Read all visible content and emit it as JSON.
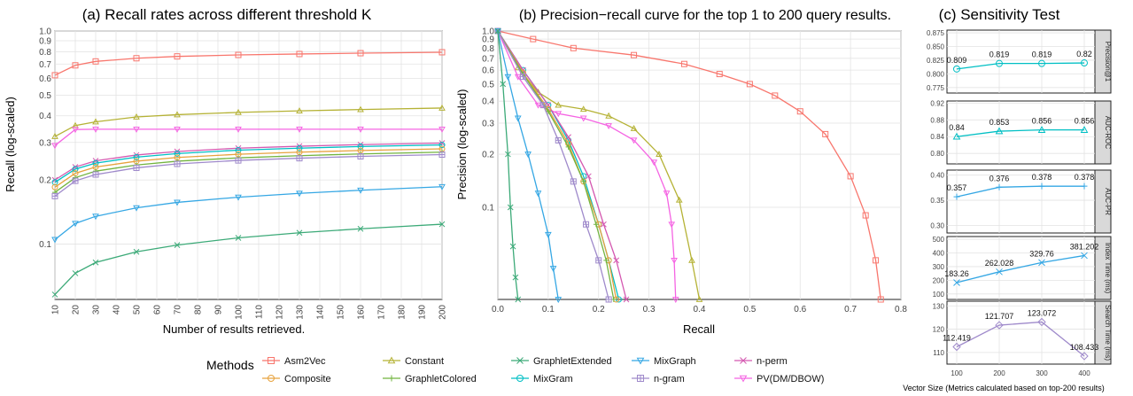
{
  "chart_data": [
    {
      "type": "line",
      "title": "(a) Recall rates across different threshold K",
      "xlabel": "Number of results retrieved.",
      "ylabel": "Recall (log-scaled)",
      "xlim": [
        10,
        200
      ],
      "ylim": [
        0.055,
        1.0
      ],
      "y_scale": "log",
      "grid": true,
      "x_ticks": [
        "10",
        "20",
        "30",
        "40",
        "50",
        "60",
        "70",
        "80",
        "90",
        "100",
        "110",
        "120",
        "130",
        "140",
        "150",
        "160",
        "170",
        "180",
        "190",
        "200"
      ],
      "y_ticks": [
        "0.1",
        "0.2",
        "0.3",
        "0.4",
        "0.5",
        "0.6",
        "0.7",
        "0.8",
        "0.9",
        "1.0"
      ],
      "x": [
        10,
        20,
        30,
        50,
        70,
        100,
        130,
        160,
        200
      ],
      "series": [
        {
          "name": "Asm2Vec",
          "color": "#f8766d",
          "values": [
            0.62,
            0.69,
            0.72,
            0.745,
            0.76,
            0.772,
            0.78,
            0.787,
            0.795
          ]
        },
        {
          "name": "Constant",
          "color": "#b5b235",
          "values": [
            0.32,
            0.36,
            0.375,
            0.395,
            0.405,
            0.415,
            0.422,
            0.428,
            0.435
          ]
        },
        {
          "name": "PV(DM/DBOW)",
          "color": "#f564e3",
          "values": [
            0.29,
            0.345,
            0.346,
            0.346,
            0.346,
            0.346,
            0.346,
            0.346,
            0.346
          ]
        },
        {
          "name": "n-perm",
          "color": "#d458b0",
          "values": [
            0.2,
            0.23,
            0.246,
            0.262,
            0.272,
            0.282,
            0.288,
            0.293,
            0.298
          ]
        },
        {
          "name": "MixGram",
          "color": "#00bfc4",
          "values": [
            0.195,
            0.225,
            0.24,
            0.256,
            0.266,
            0.276,
            0.282,
            0.287,
            0.292
          ]
        },
        {
          "name": "Composite",
          "color": "#e7a23d",
          "values": [
            0.185,
            0.215,
            0.23,
            0.245,
            0.255,
            0.264,
            0.27,
            0.275,
            0.28
          ]
        },
        {
          "name": "GraphletColored",
          "color": "#72b43f",
          "values": [
            0.175,
            0.205,
            0.22,
            0.235,
            0.245,
            0.254,
            0.26,
            0.265,
            0.27
          ]
        },
        {
          "name": "n-gram",
          "color": "#9f8acb",
          "values": [
            0.168,
            0.198,
            0.212,
            0.228,
            0.238,
            0.247,
            0.253,
            0.258,
            0.263
          ]
        },
        {
          "name": "MixGraph",
          "color": "#35a7e4",
          "values": [
            0.105,
            0.125,
            0.135,
            0.148,
            0.157,
            0.166,
            0.173,
            0.179,
            0.186
          ]
        },
        {
          "name": "GraphletExtended",
          "color": "#3caa78",
          "values": [
            0.058,
            0.073,
            0.082,
            0.092,
            0.099,
            0.107,
            0.113,
            0.118,
            0.124
          ]
        }
      ]
    },
    {
      "type": "line",
      "title": "(b) Precision−recall curve for the top 1 to 200 query results.",
      "xlabel": "Recall",
      "ylabel": "Precision (log-scaled)",
      "xlim": [
        0.0,
        0.8
      ],
      "ylim": [
        0.03,
        1.0
      ],
      "y_scale": "log",
      "grid": true,
      "x_ticks": [
        "0.0",
        "0.1",
        "0.2",
        "0.3",
        "0.4",
        "0.5",
        "0.6",
        "0.7",
        "0.8"
      ],
      "y_ticks": [
        "0.1",
        "0.2",
        "0.3",
        "0.4",
        "0.5",
        "0.6",
        "0.7",
        "0.8",
        "0.9",
        "1.0"
      ],
      "series": [
        {
          "name": "Asm2Vec",
          "color": "#f8766d",
          "x": [
            0.0,
            0.07,
            0.15,
            0.27,
            0.37,
            0.44,
            0.5,
            0.55,
            0.6,
            0.65,
            0.7,
            0.73,
            0.75,
            0.76
          ],
          "y": [
            1.0,
            0.9,
            0.8,
            0.73,
            0.65,
            0.57,
            0.5,
            0.43,
            0.35,
            0.26,
            0.15,
            0.09,
            0.05,
            0.03
          ]
        },
        {
          "name": "Constant",
          "color": "#b5b235",
          "x": [
            0.0,
            0.04,
            0.08,
            0.12,
            0.17,
            0.22,
            0.27,
            0.32,
            0.36,
            0.385,
            0.4
          ],
          "y": [
            1.0,
            0.62,
            0.45,
            0.38,
            0.36,
            0.33,
            0.28,
            0.2,
            0.11,
            0.05,
            0.03
          ]
        },
        {
          "name": "PV(DM/DBOW)",
          "color": "#f564e3",
          "x": [
            0.0,
            0.04,
            0.08,
            0.12,
            0.17,
            0.22,
            0.27,
            0.31,
            0.335,
            0.345,
            0.35,
            0.353
          ],
          "y": [
            1.0,
            0.55,
            0.38,
            0.34,
            0.32,
            0.29,
            0.24,
            0.18,
            0.12,
            0.08,
            0.05,
            0.03
          ]
        },
        {
          "name": "MixGram",
          "color": "#00bfc4",
          "x": [
            0.0,
            0.05,
            0.1,
            0.14,
            0.17,
            0.2,
            0.22,
            0.24
          ],
          "y": [
            1.0,
            0.6,
            0.38,
            0.24,
            0.15,
            0.08,
            0.05,
            0.03
          ]
        },
        {
          "name": "n-perm",
          "color": "#d458b0",
          "x": [
            0.0,
            0.05,
            0.1,
            0.14,
            0.18,
            0.21,
            0.235,
            0.255
          ],
          "y": [
            1.0,
            0.6,
            0.38,
            0.25,
            0.15,
            0.08,
            0.05,
            0.03
          ]
        },
        {
          "name": "Composite",
          "color": "#e7a23d",
          "x": [
            0.0,
            0.05,
            0.1,
            0.14,
            0.17,
            0.2,
            0.22,
            0.235
          ],
          "y": [
            1.0,
            0.58,
            0.36,
            0.23,
            0.14,
            0.08,
            0.05,
            0.03
          ]
        },
        {
          "name": "GraphletColored",
          "color": "#72b43f",
          "x": [
            0.0,
            0.05,
            0.1,
            0.14,
            0.17,
            0.195,
            0.215,
            0.23
          ],
          "y": [
            1.0,
            0.57,
            0.35,
            0.22,
            0.14,
            0.08,
            0.05,
            0.03
          ]
        },
        {
          "name": "n-gram",
          "color": "#9f8acb",
          "x": [
            0.0,
            0.05,
            0.09,
            0.12,
            0.15,
            0.175,
            0.2,
            0.22
          ],
          "y": [
            1.0,
            0.55,
            0.38,
            0.24,
            0.14,
            0.08,
            0.05,
            0.03
          ]
        },
        {
          "name": "MixGraph",
          "color": "#35a7e4",
          "x": [
            0.0,
            0.02,
            0.04,
            0.06,
            0.08,
            0.1,
            0.11,
            0.12
          ],
          "y": [
            1.0,
            0.55,
            0.32,
            0.2,
            0.12,
            0.07,
            0.045,
            0.03
          ]
        },
        {
          "name": "GraphletExtended",
          "color": "#3caa78",
          "x": [
            0.0,
            0.01,
            0.02,
            0.025,
            0.03,
            0.035,
            0.04
          ],
          "y": [
            1.0,
            0.5,
            0.2,
            0.1,
            0.06,
            0.04,
            0.03
          ]
        }
      ]
    },
    {
      "type": "line",
      "title": "(c) Sensitivity Test",
      "xlabel": "Vector Size (Metrics calculated based on top-200 results)",
      "x": [
        100,
        200,
        300,
        400
      ],
      "x_ticks": [
        "100",
        "200",
        "300",
        "400"
      ],
      "grid": true,
      "panels": [
        {
          "name": "Precision@1",
          "color": "#00bfc4",
          "values": [
            0.809,
            0.819,
            0.819,
            0.82
          ],
          "labels": [
            "0.809",
            "0.819",
            "0.819",
            "0.82"
          ],
          "ylim": [
            0.765,
            0.88
          ],
          "y_ticks": [
            "0.775",
            "0.800",
            "0.825",
            "0.850",
            "0.875"
          ]
        },
        {
          "name": "AUC-ROC",
          "color": "#00bfc4",
          "values": [
            0.84,
            0.853,
            0.856,
            0.856
          ],
          "labels": [
            "0.84",
            "0.853",
            "0.856",
            "0.856"
          ],
          "ylim": [
            0.775,
            0.925
          ],
          "y_ticks": [
            "0.80",
            "0.84",
            "0.88",
            "0.92"
          ]
        },
        {
          "name": "AUC-PR",
          "color": "#35a7e4",
          "values": [
            0.357,
            0.376,
            0.378,
            0.378
          ],
          "labels": [
            "0.357",
            "0.376",
            "0.378",
            "0.378"
          ],
          "ylim": [
            0.285,
            0.41
          ],
          "y_ticks": [
            "0.30",
            "0.35",
            "0.40"
          ]
        },
        {
          "name": "Index Time (ms)",
          "color": "#35a7e4",
          "values": [
            183.26,
            262.028,
            329.76,
            381.202
          ],
          "labels": [
            "183.26",
            "262.028",
            "329.76",
            "381.202"
          ],
          "ylim": [
            60,
            520
          ],
          "y_ticks": [
            "100",
            "200",
            "300",
            "400",
            "500"
          ]
        },
        {
          "name": "Search Time (ms)",
          "color": "#9f8acb",
          "values": [
            112.419,
            121.707,
            123.072,
            108.433
          ],
          "labels": [
            "112.419",
            "121.707",
            "123.072",
            "108.433"
          ],
          "ylim": [
            105,
            132
          ],
          "y_ticks": [
            "110",
            "120",
            "130"
          ]
        }
      ]
    }
  ],
  "legend": {
    "title": "Methods",
    "placement": "bottom",
    "items": [
      {
        "name": "Asm2Vec",
        "color": "#f8766d",
        "marker": "square"
      },
      {
        "name": "Constant",
        "color": "#b5b235",
        "marker": "triangle"
      },
      {
        "name": "GraphletExtended",
        "color": "#3caa78",
        "marker": "x"
      },
      {
        "name": "MixGraph",
        "color": "#35a7e4",
        "marker": "triangle-down"
      },
      {
        "name": "n-perm",
        "color": "#d458b0",
        "marker": "x"
      },
      {
        "name": "Composite",
        "color": "#e7a23d",
        "marker": "circle"
      },
      {
        "name": "GraphletColored",
        "color": "#72b43f",
        "marker": "plus"
      },
      {
        "name": "MixGram",
        "color": "#00bfc4",
        "marker": "circle"
      },
      {
        "name": "n-gram",
        "color": "#9f8acb",
        "marker": "square-cross"
      },
      {
        "name": "PV(DM/DBOW)",
        "color": "#f564e3",
        "marker": "triangle-down"
      }
    ]
  }
}
